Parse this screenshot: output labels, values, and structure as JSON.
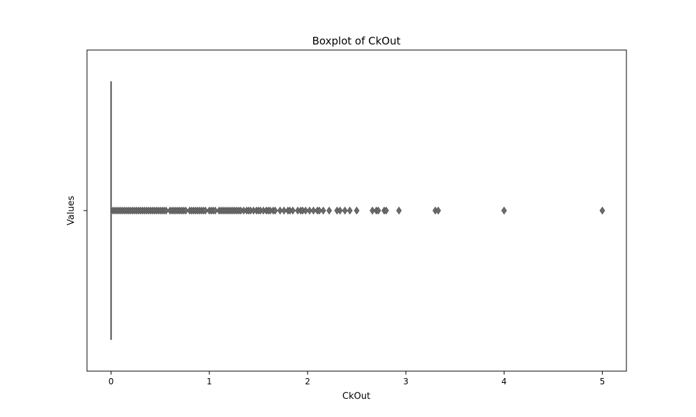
{
  "chart_data": {
    "type": "box",
    "title": "Boxplot of CkOut",
    "xlabel": "CkOut",
    "ylabel": "Values",
    "xlim": [
      -0.245,
      5.245
    ],
    "xticks": [
      0,
      1,
      2,
      3,
      4,
      5
    ],
    "xtick_labels": [
      "0",
      "1",
      "2",
      "3",
      "4",
      "5"
    ],
    "yticks": [
      ""
    ],
    "grid": false,
    "legend": "none",
    "box": {
      "q1": 0,
      "median": 0,
      "q3": 0,
      "whisker_low": 0,
      "whisker_high": 0
    },
    "outliers": [
      0.02,
      0.04,
      0.06,
      0.08,
      0.1,
      0.12,
      0.14,
      0.16,
      0.18,
      0.2,
      0.22,
      0.24,
      0.26,
      0.28,
      0.3,
      0.32,
      0.34,
      0.36,
      0.38,
      0.4,
      0.42,
      0.44,
      0.46,
      0.48,
      0.5,
      0.52,
      0.54,
      0.56,
      0.6,
      0.62,
      0.64,
      0.66,
      0.68,
      0.7,
      0.72,
      0.74,
      0.76,
      0.8,
      0.82,
      0.84,
      0.86,
      0.88,
      0.9,
      0.92,
      0.94,
      0.96,
      1.0,
      1.02,
      1.04,
      1.06,
      1.1,
      1.12,
      1.14,
      1.16,
      1.18,
      1.2,
      1.22,
      1.24,
      1.26,
      1.28,
      1.3,
      1.32,
      1.35,
      1.38,
      1.4,
      1.42,
      1.45,
      1.48,
      1.5,
      1.52,
      1.55,
      1.58,
      1.6,
      1.62,
      1.65,
      1.67,
      1.72,
      1.76,
      1.8,
      1.82,
      1.85,
      1.9,
      1.93,
      1.95,
      1.98,
      2.02,
      2.06,
      2.1,
      2.12,
      2.16,
      2.22,
      2.3,
      2.33,
      2.38,
      2.43,
      2.5,
      2.66,
      2.7,
      2.72,
      2.78,
      2.8,
      2.93,
      3.3,
      3.33,
      4.0,
      5.0
    ],
    "colors": {
      "line": "#4d4d4d",
      "marker": "#6b6b6b",
      "frame": "#000000"
    }
  }
}
